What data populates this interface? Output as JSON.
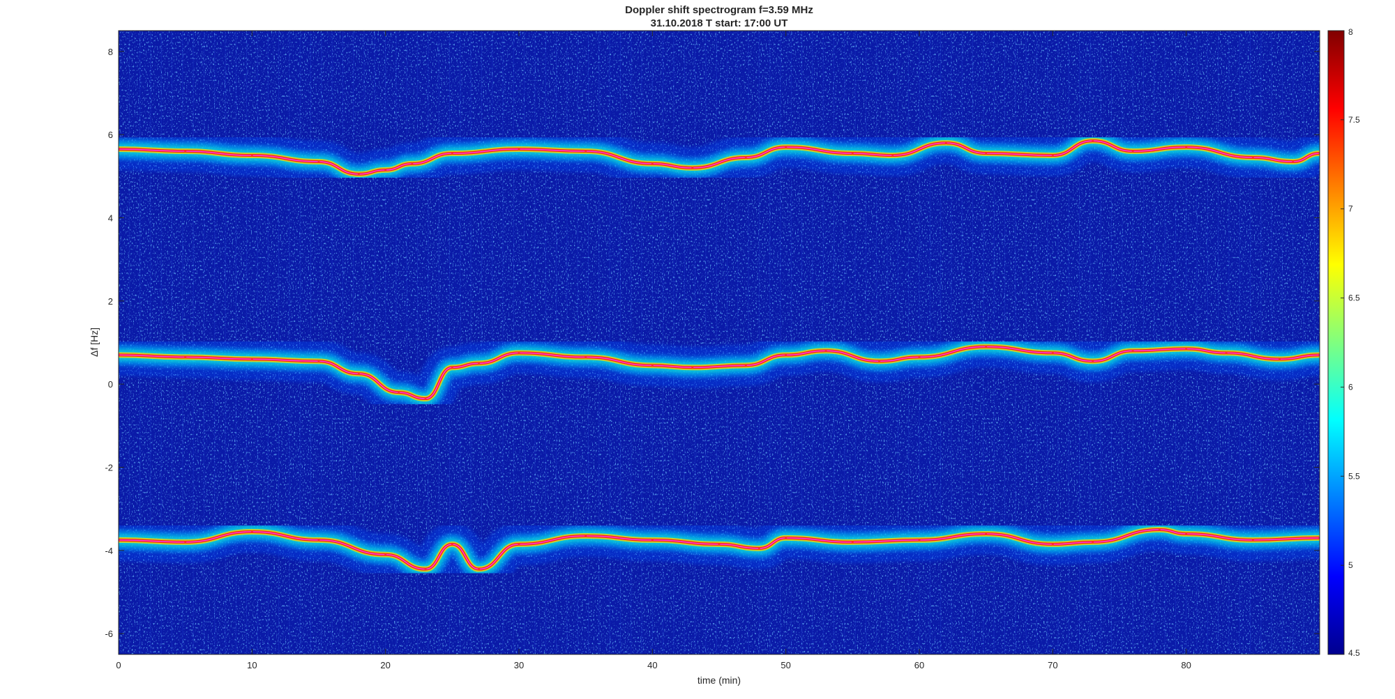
{
  "chart_data": {
    "type": "heatmap",
    "title": "Doppler shift spectrogram f=3.59 MHz",
    "subtitle": "31.10.2018   T start: 17:00 UT",
    "xlabel": "time (min)",
    "ylabel": "Δf [Hz]",
    "xlim": [
      0,
      90
    ],
    "ylim": [
      -6.5,
      8.5
    ],
    "xticks": [
      0,
      10,
      20,
      30,
      40,
      50,
      60,
      70,
      80
    ],
    "yticks": [
      -6,
      -4,
      -2,
      0,
      2,
      4,
      6,
      8
    ],
    "colormap": "jet",
    "clim": [
      4.5,
      8
    ],
    "colorbar_ticks": [
      4.5,
      5,
      5.5,
      6,
      6.5,
      7,
      7.5,
      8
    ],
    "grid": false,
    "series": [
      {
        "x": [
          0,
          5,
          10,
          15,
          18,
          20,
          22,
          25,
          30,
          35,
          40,
          43,
          47,
          50,
          55,
          58,
          62,
          65,
          70,
          73,
          76,
          80,
          85,
          88,
          90
        ],
        "y": [
          5.65,
          5.6,
          5.5,
          5.35,
          5.05,
          5.15,
          5.3,
          5.55,
          5.65,
          5.6,
          5.3,
          5.2,
          5.45,
          5.7,
          5.55,
          5.5,
          5.8,
          5.55,
          5.5,
          5.85,
          5.6,
          5.7,
          5.45,
          5.35,
          5.55
        ]
      },
      {
        "x": [
          0,
          5,
          10,
          15,
          18,
          21,
          23,
          25,
          27,
          30,
          35,
          40,
          43,
          47,
          50,
          53,
          57,
          60,
          65,
          70,
          73,
          76,
          80,
          83,
          87,
          90
        ],
        "y": [
          0.7,
          0.65,
          0.6,
          0.55,
          0.25,
          -0.2,
          -0.35,
          0.4,
          0.5,
          0.75,
          0.65,
          0.45,
          0.4,
          0.45,
          0.7,
          0.8,
          0.55,
          0.65,
          0.9,
          0.75,
          0.55,
          0.8,
          0.85,
          0.75,
          0.6,
          0.7
        ]
      },
      {
        "x": [
          0,
          5,
          10,
          15,
          20,
          23,
          25,
          27,
          30,
          35,
          40,
          45,
          48,
          50,
          55,
          60,
          65,
          70,
          73,
          78,
          80,
          85,
          90
        ],
        "y": [
          -3.75,
          -3.8,
          -3.55,
          -3.75,
          -4.1,
          -4.45,
          -3.85,
          -4.45,
          -3.85,
          -3.65,
          -3.75,
          -3.85,
          -3.95,
          -3.7,
          -3.8,
          -3.75,
          -3.6,
          -3.85,
          -3.8,
          -3.5,
          -3.6,
          -3.75,
          -3.7
        ]
      }
    ]
  }
}
